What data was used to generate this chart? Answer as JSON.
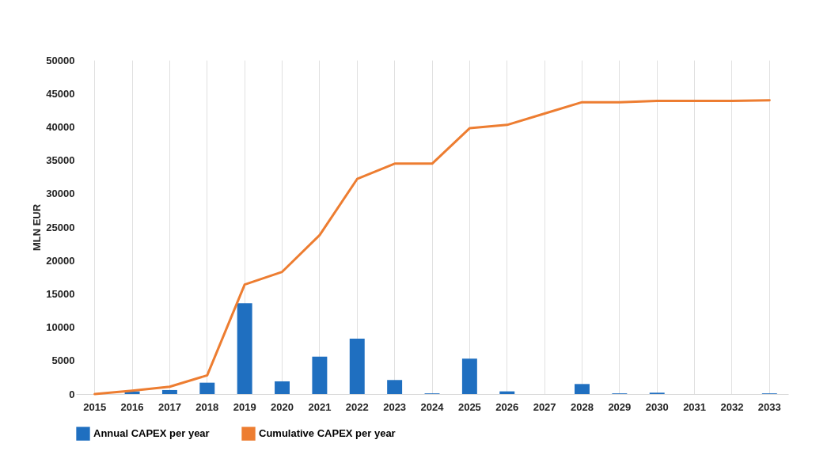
{
  "chart_data": {
    "type": "bar",
    "ylabel": "MLN EUR",
    "categories": [
      "2015",
      "2016",
      "2017",
      "2018",
      "2019",
      "2020",
      "2021",
      "2022",
      "2023",
      "2024",
      "2025",
      "2026",
      "2027",
      "2028",
      "2029",
      "2030",
      "2031",
      "2032",
      "2033"
    ],
    "series": [
      {
        "name": "Annual CAPEX per year",
        "color": "#1f6fc0",
        "values": [
          0,
          400,
          600,
          1700,
          13600,
          1900,
          5600,
          8300,
          2100,
          100,
          5300,
          400,
          0,
          1500,
          100,
          200,
          0,
          0,
          100
        ]
      },
      {
        "name": "Cumulative CAPEX per year",
        "type": "line",
        "color": "#ed7d31",
        "values": [
          0,
          500,
          1100,
          2800,
          16400,
          18300,
          23800,
          32200,
          34500,
          34500,
          39800,
          40300,
          42000,
          43700,
          43700,
          43900,
          43900,
          43900,
          44000
        ]
      }
    ],
    "ylim": [
      0,
      50000
    ],
    "yticks": [
      0,
      5000,
      10000,
      15000,
      20000,
      25000,
      30000,
      35000,
      40000,
      45000,
      50000
    ],
    "grid": "x",
    "legend": "bottom"
  }
}
